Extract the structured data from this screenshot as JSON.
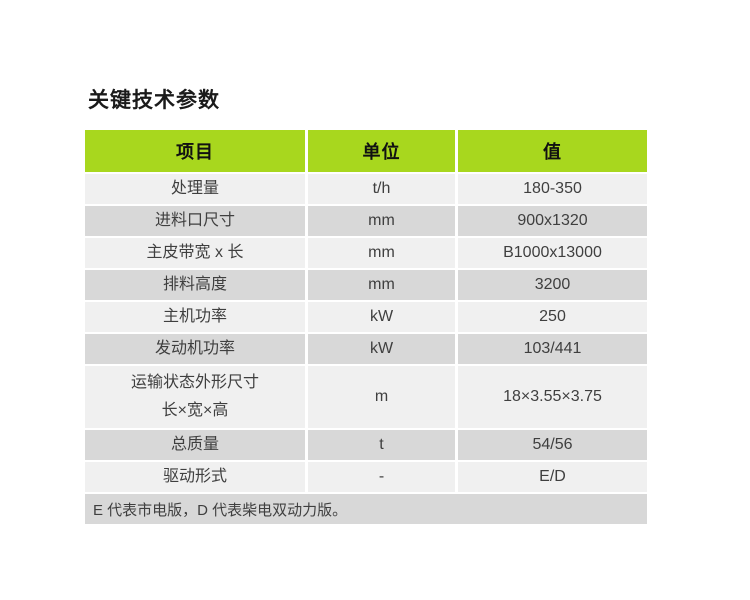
{
  "title": "关键技术参数",
  "colors": {
    "header_bg": "#a8d71e",
    "row_light": "#f0f0f0",
    "row_dark": "#d8d8d8",
    "text": "#3f3f3f",
    "title_text": "#1a1a1a"
  },
  "table": {
    "headers": [
      "项目",
      "单位",
      "值"
    ],
    "rows": [
      {
        "item": "处理量",
        "unit": "t/h",
        "value": "180-350"
      },
      {
        "item": "进料口尺寸",
        "unit": "mm",
        "value": "900x1320"
      },
      {
        "item": "主皮带宽 x 长",
        "unit": "mm",
        "value": "B1000x13000"
      },
      {
        "item": "排料高度",
        "unit": "mm",
        "value": "3200"
      },
      {
        "item": "主机功率",
        "unit": "kW",
        "value": "250"
      },
      {
        "item": "发动机功率",
        "unit": "kW",
        "value": "103/441"
      },
      {
        "item": "运输状态外形尺寸",
        "item_line2": "长×宽×高",
        "unit": "m",
        "value": "18×3.55×3.75"
      },
      {
        "item": "总质量",
        "unit": "t",
        "value": "54/56"
      },
      {
        "item": "驱动形式",
        "unit": "-",
        "value": "E/D"
      }
    ],
    "footnote": "E 代表市电版，D 代表柴电双动力版。"
  }
}
